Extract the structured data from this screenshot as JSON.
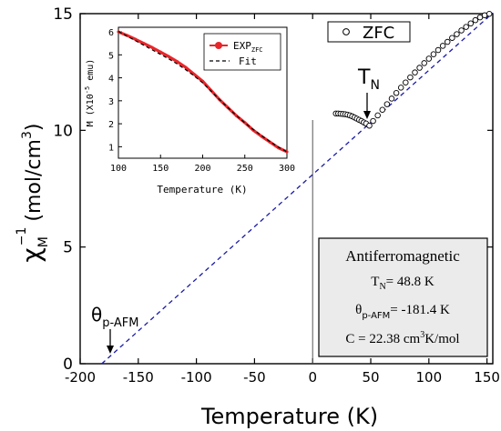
{
  "chart_data": [
    {
      "type": "scatter",
      "xlabel": "Temperature  (K)",
      "ylabel_main": "χ",
      "ylabel_sup": "−1",
      "ylabel_sub": "M",
      "ylabel_unit_prefix": "(mol/cm",
      "ylabel_unit_sup": "3",
      "ylabel_unit_suffix": ")",
      "xlim": [
        -200,
        155
      ],
      "ylim": [
        0,
        15
      ],
      "x_ticks": [
        -200,
        -150,
        -100,
        -50,
        0,
        50,
        100,
        150
      ],
      "y_ticks": [
        0,
        5,
        10,
        15
      ],
      "legend": {
        "position": "top-right",
        "label": "ZFC"
      },
      "series": [
        {
          "name": "ZFC",
          "marker": "open-circle",
          "points": [
            [
              20,
              10.72
            ],
            [
              22,
              10.72
            ],
            [
              24,
              10.71
            ],
            [
              26,
              10.7
            ],
            [
              28,
              10.69
            ],
            [
              30,
              10.67
            ],
            [
              32,
              10.64
            ],
            [
              34,
              10.6
            ],
            [
              36,
              10.55
            ],
            [
              38,
              10.5
            ],
            [
              40,
              10.45
            ],
            [
              42,
              10.4
            ],
            [
              44,
              10.34
            ],
            [
              46,
              10.29
            ],
            [
              48.8,
              10.2
            ],
            [
              52,
              10.4
            ],
            [
              56,
              10.64
            ],
            [
              60,
              10.88
            ],
            [
              64,
              11.12
            ],
            [
              68,
              11.36
            ],
            [
              72,
              11.6
            ],
            [
              76,
              11.83
            ],
            [
              80,
              12.05
            ],
            [
              84,
              12.27
            ],
            [
              88,
              12.48
            ],
            [
              92,
              12.68
            ],
            [
              96,
              12.88
            ],
            [
              100,
              13.07
            ],
            [
              104,
              13.26
            ],
            [
              108,
              13.44
            ],
            [
              112,
              13.62
            ],
            [
              116,
              13.79
            ],
            [
              120,
              13.96
            ],
            [
              124,
              14.12
            ],
            [
              128,
              14.28
            ],
            [
              132,
              14.43
            ],
            [
              136,
              14.58
            ],
            [
              140,
              14.72
            ],
            [
              144,
              14.84
            ],
            [
              148,
              14.93
            ],
            [
              152,
              14.99
            ]
          ]
        },
        {
          "name": "Curie-Weiss fit",
          "style": "dashed",
          "color": "#1a1aa6",
          "line": [
            [
              -181.4,
              0
            ],
            [
              155,
              15.03
            ]
          ]
        }
      ],
      "annotations": [
        {
          "label": "T",
          "sub": "N",
          "x": 48.8,
          "y": 10.2
        },
        {
          "label": "θ",
          "sub": "p-AFM",
          "x": -181.4,
          "y": 0
        }
      ],
      "vertical_line_x": 0,
      "info_box": {
        "title": "Antiferromagnetic",
        "tn_prefix": "T",
        "tn_sub": "N",
        "tn_value": "= 48.8 K",
        "theta_prefix": "θ",
        "theta_sub": "p-AFM",
        "theta_value": "= -181.4 K",
        "c_prefix": "C = 22.38 cm",
        "c_sup": "3",
        "c_suffix": "K/mol"
      }
    },
    {
      "type": "line",
      "position": "inset",
      "xlabel": "Temperature (K)",
      "ylabel_prefix": "M (X10",
      "ylabel_sup": "-5",
      "ylabel_suffix": " emu)",
      "xlim": [
        100,
        300
      ],
      "ylim": [
        0.5,
        6.2
      ],
      "x_ticks": [
        100,
        150,
        200,
        250,
        300
      ],
      "y_ticks": [
        1,
        2,
        3,
        4,
        5,
        6
      ],
      "legend": {
        "position": "top-right"
      },
      "series": [
        {
          "name": "EXP",
          "name_sub": "ZFC",
          "color": "#e8262a",
          "x": [
            100,
            110,
            120,
            130,
            140,
            150,
            160,
            170,
            180,
            190,
            200,
            210,
            220,
            230,
            240,
            250,
            260,
            270,
            280,
            290,
            300
          ],
          "y": [
            6.0,
            5.85,
            5.68,
            5.5,
            5.32,
            5.12,
            4.92,
            4.7,
            4.45,
            4.15,
            3.85,
            3.45,
            3.05,
            2.7,
            2.35,
            2.05,
            1.72,
            1.45,
            1.2,
            0.95,
            0.78
          ]
        },
        {
          "name": "Fit",
          "style": "dashed",
          "color": "#000000",
          "x": [
            100,
            110,
            120,
            130,
            140,
            150,
            160,
            170,
            180,
            190,
            200,
            210,
            220,
            230,
            240,
            250,
            260,
            270,
            280,
            290,
            300
          ],
          "y": [
            6.02,
            5.82,
            5.62,
            5.42,
            5.22,
            5.02,
            4.82,
            4.6,
            4.35,
            4.08,
            3.78,
            3.42,
            3.05,
            2.7,
            2.36,
            2.04,
            1.75,
            1.48,
            1.22,
            0.98,
            0.78
          ]
        }
      ]
    }
  ]
}
